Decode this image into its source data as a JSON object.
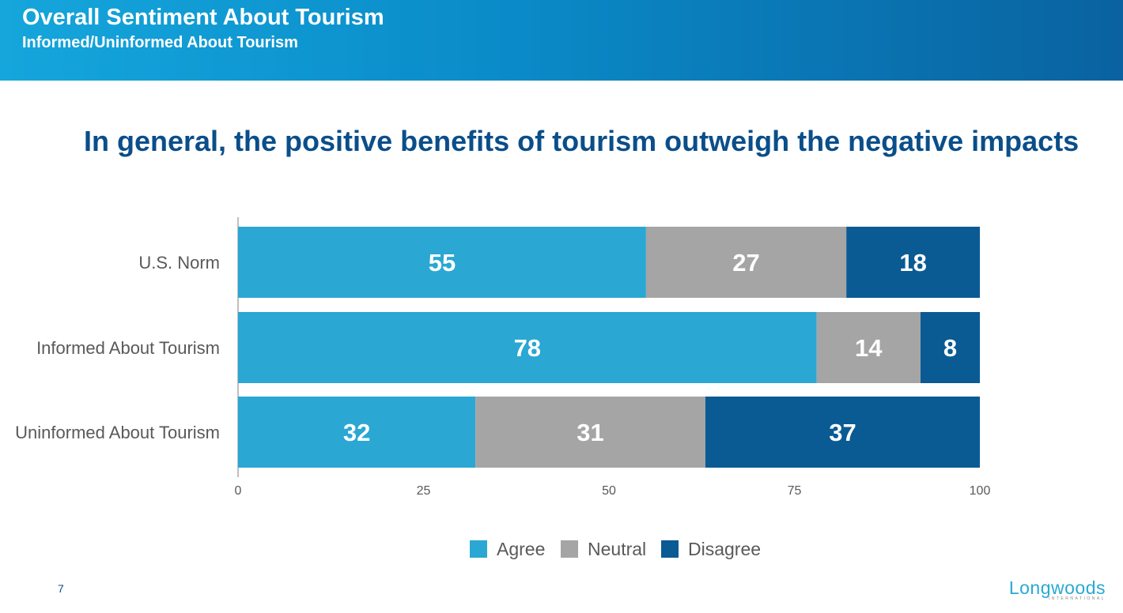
{
  "header": {
    "title": "Overall Sentiment About Tourism",
    "subtitle": "Informed/Uninformed About Tourism"
  },
  "footer": {
    "page_number": "7",
    "logo_text": "Longwoods",
    "logo_subtext": "INTERNATIONAL"
  },
  "chart_data": {
    "type": "bar",
    "orientation": "horizontal",
    "stacked": true,
    "title": "In general, the positive benefits of tourism outweigh the negative impacts",
    "categories": [
      "U.S. Norm",
      "Informed About Tourism",
      "Uninformed About Tourism"
    ],
    "series": [
      {
        "name": "Agree",
        "values": [
          55,
          78,
          32
        ],
        "color": "#2aa7d3"
      },
      {
        "name": "Neutral",
        "values": [
          27,
          14,
          31
        ],
        "color": "#a5a5a5"
      },
      {
        "name": "Disagree",
        "values": [
          18,
          8,
          37
        ],
        "color": "#0a5a94"
      }
    ],
    "xlim": [
      0,
      100
    ],
    "xticks": [
      0,
      25,
      50,
      75,
      100
    ],
    "grid": false,
    "legend_position": "bottom-center"
  }
}
